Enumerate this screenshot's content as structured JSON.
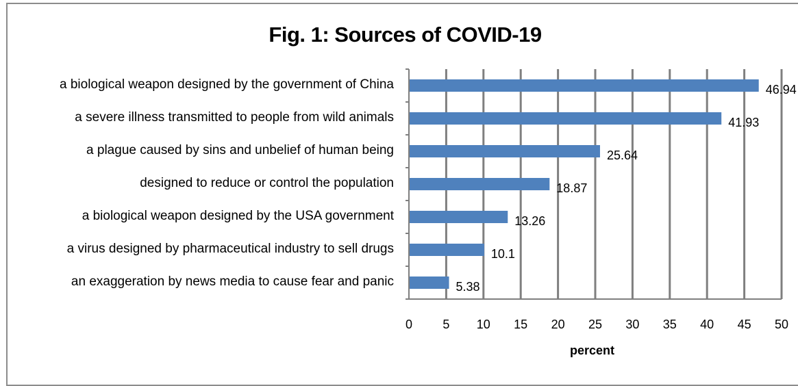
{
  "chart_data": {
    "type": "bar",
    "orientation": "horizontal",
    "title": "Fig. 1: Sources of COVID-19",
    "xlabel": "percent",
    "ylabel": "",
    "xlim": [
      0,
      50
    ],
    "xticks": [
      0,
      5,
      10,
      15,
      20,
      25,
      30,
      35,
      40,
      45,
      50
    ],
    "grid": "vertical",
    "categories": [
      "a biological weapon designed by the government of China",
      "a severe illness transmitted to people from wild animals",
      "a plague caused by sins and unbelief of human being",
      "designed to reduce or control the population",
      "a biological weapon designed by the USA government",
      "a virus designed by pharmaceutical industry to sell drugs",
      "an exaggeration by news media to cause fear and panic"
    ],
    "values": [
      46.94,
      41.93,
      25.64,
      18.87,
      13.26,
      10.1,
      5.38
    ],
    "data_labels": [
      "46.94",
      "41.93",
      "25.64",
      "18.87",
      "13.26",
      "10.1",
      "5.38"
    ],
    "bar_color": "#4f81bd",
    "grid_color": "#7f7f7f"
  }
}
